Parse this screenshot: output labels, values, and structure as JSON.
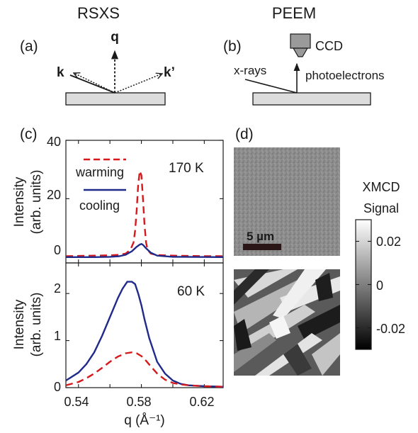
{
  "headers": {
    "left": "RSXS",
    "right": "PEEM"
  },
  "panel_labels": {
    "a": "(a)",
    "b": "(b)",
    "c": "(c)",
    "d": "(d)"
  },
  "schematic_a": {
    "q_label": "q",
    "k_label": "k",
    "kprime_label": "k’"
  },
  "schematic_b": {
    "ccd_label": "CCD",
    "xrays_label": "x-rays",
    "photoelectrons_label": "photoelectrons"
  },
  "colors": {
    "warming": "#d7191c",
    "cooling": "#1f2a8a",
    "axis": "#1a1a1a",
    "sample": "#dcdcdc"
  },
  "legend": {
    "warming": "warming",
    "cooling": "cooling"
  },
  "panel_d": {
    "scalebar_label": "5 µm"
  },
  "colorbar": {
    "title_line1": "XMCD",
    "title_line2": "Signal",
    "ticks": [
      "0.02",
      "0",
      "-0.02"
    ],
    "range": [
      -0.03,
      0.03
    ]
  },
  "chart_data": [
    {
      "type": "line",
      "annotation": "170 K",
      "ylabel_line1": "Intensity",
      "ylabel_line2": "(arb. units)",
      "xlim": [
        0.532,
        0.632
      ],
      "ylim": [
        -2,
        40
      ],
      "yticks": [
        "0",
        "20",
        "40"
      ],
      "series": [
        {
          "name": "warming",
          "style": "dashed",
          "x": [
            0.532,
            0.54,
            0.55,
            0.56,
            0.566,
            0.57,
            0.573,
            0.575,
            0.576,
            0.577,
            0.578,
            0.579,
            0.58,
            0.581,
            0.582,
            0.583,
            0.584,
            0.586,
            0.59,
            0.6,
            0.61,
            0.62,
            0.632
          ],
          "values": [
            0.3,
            0.4,
            0.5,
            0.6,
            0.8,
            1.2,
            2.5,
            5,
            9,
            16,
            25,
            29.5,
            28,
            20,
            11,
            5,
            2.5,
            1.2,
            0.7,
            0.5,
            0.4,
            0.3,
            0.3
          ]
        },
        {
          "name": "cooling",
          "style": "solid",
          "x": [
            0.532,
            0.55,
            0.56,
            0.566,
            0.57,
            0.574,
            0.577,
            0.579,
            0.58,
            0.581,
            0.583,
            0.586,
            0.59,
            0.6,
            0.632
          ],
          "values": [
            0.0,
            0.0,
            0.1,
            0.3,
            0.8,
            2.0,
            3.5,
            4.3,
            4.5,
            4.2,
            3.0,
            1.5,
            0.5,
            0.1,
            0.0
          ]
        }
      ]
    },
    {
      "type": "line",
      "annotation": "60 K",
      "xlabel": "q (Å⁻¹)",
      "ylabel_line1": "Intensity",
      "ylabel_line2": "(arb. units)",
      "xlim": [
        0.532,
        0.632
      ],
      "ylim": [
        0,
        2.65
      ],
      "xticks": [
        "0.54",
        "0.58",
        "0.62"
      ],
      "xtick_values": [
        0.54,
        0.58,
        0.62
      ],
      "yticks": [
        "0",
        "1",
        "2"
      ],
      "series": [
        {
          "name": "cooling",
          "style": "solid",
          "x": [
            0.532,
            0.54,
            0.545,
            0.55,
            0.555,
            0.56,
            0.565,
            0.568,
            0.571,
            0.574,
            0.576,
            0.578,
            0.58,
            0.582,
            0.585,
            0.59,
            0.595,
            0.6,
            0.605,
            0.61,
            0.62,
            0.632
          ],
          "values": [
            0.15,
            0.32,
            0.5,
            0.75,
            1.1,
            1.5,
            1.9,
            2.1,
            2.25,
            2.25,
            2.2,
            2.0,
            1.75,
            1.45,
            1.05,
            0.55,
            0.3,
            0.15,
            0.08,
            0.05,
            0.03,
            0.02
          ]
        },
        {
          "name": "warming",
          "style": "dashed",
          "x": [
            0.532,
            0.54,
            0.545,
            0.55,
            0.555,
            0.56,
            0.565,
            0.57,
            0.574,
            0.577,
            0.58,
            0.583,
            0.586,
            0.59,
            0.595,
            0.6,
            0.605,
            0.61,
            0.62,
            0.632
          ],
          "values": [
            0.05,
            0.12,
            0.2,
            0.3,
            0.42,
            0.55,
            0.66,
            0.73,
            0.75,
            0.73,
            0.67,
            0.57,
            0.45,
            0.3,
            0.17,
            0.1,
            0.07,
            0.05,
            0.03,
            0.02
          ]
        }
      ]
    }
  ]
}
